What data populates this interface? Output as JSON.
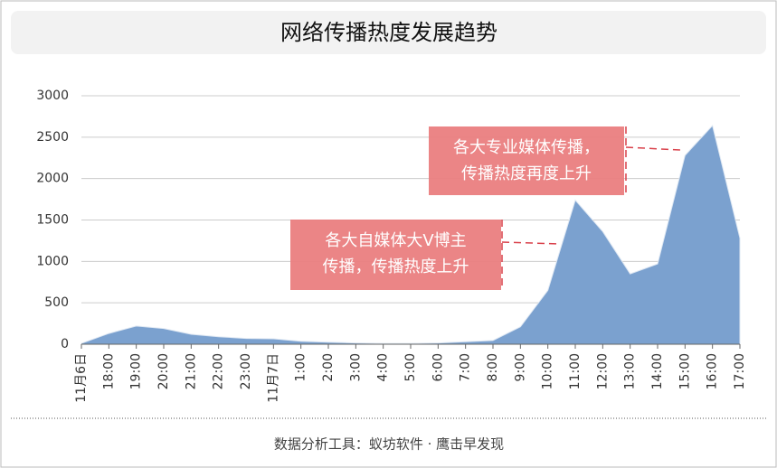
{
  "chart_data": {
    "type": "area",
    "title": "网络传播热度发展趋势",
    "categories": [
      "11月6日",
      "18:00",
      "19:00",
      "20:00",
      "21:00",
      "22:00",
      "23:00",
      "11月7日",
      "1:00",
      "2:00",
      "3:00",
      "4:00",
      "5:00",
      "6:00",
      "7:00",
      "8:00",
      "9:00",
      "10:00",
      "11:00",
      "12:00",
      "13:00",
      "14:00",
      "15:00",
      "16:00",
      "17:00"
    ],
    "values": [
      10,
      130,
      220,
      190,
      120,
      90,
      70,
      65,
      35,
      25,
      15,
      10,
      10,
      15,
      30,
      45,
      210,
      650,
      1740,
      1360,
      850,
      970,
      2280,
      2640,
      1280
    ],
    "color": "#7ba1cf",
    "ylim": [
      0,
      3000
    ],
    "yticks": [
      0,
      500,
      1000,
      1500,
      2000,
      2500,
      3000
    ],
    "grid": true,
    "annotations": [
      {
        "lines": [
          "各大自媒体大V博主",
          "传播，传播热度上升"
        ]
      },
      {
        "lines": [
          "各大专业媒体传播，",
          "传播热度再度上升"
        ]
      }
    ],
    "footer": "数据分析工具：蚁坊软件 · 鹰击早发现"
  }
}
